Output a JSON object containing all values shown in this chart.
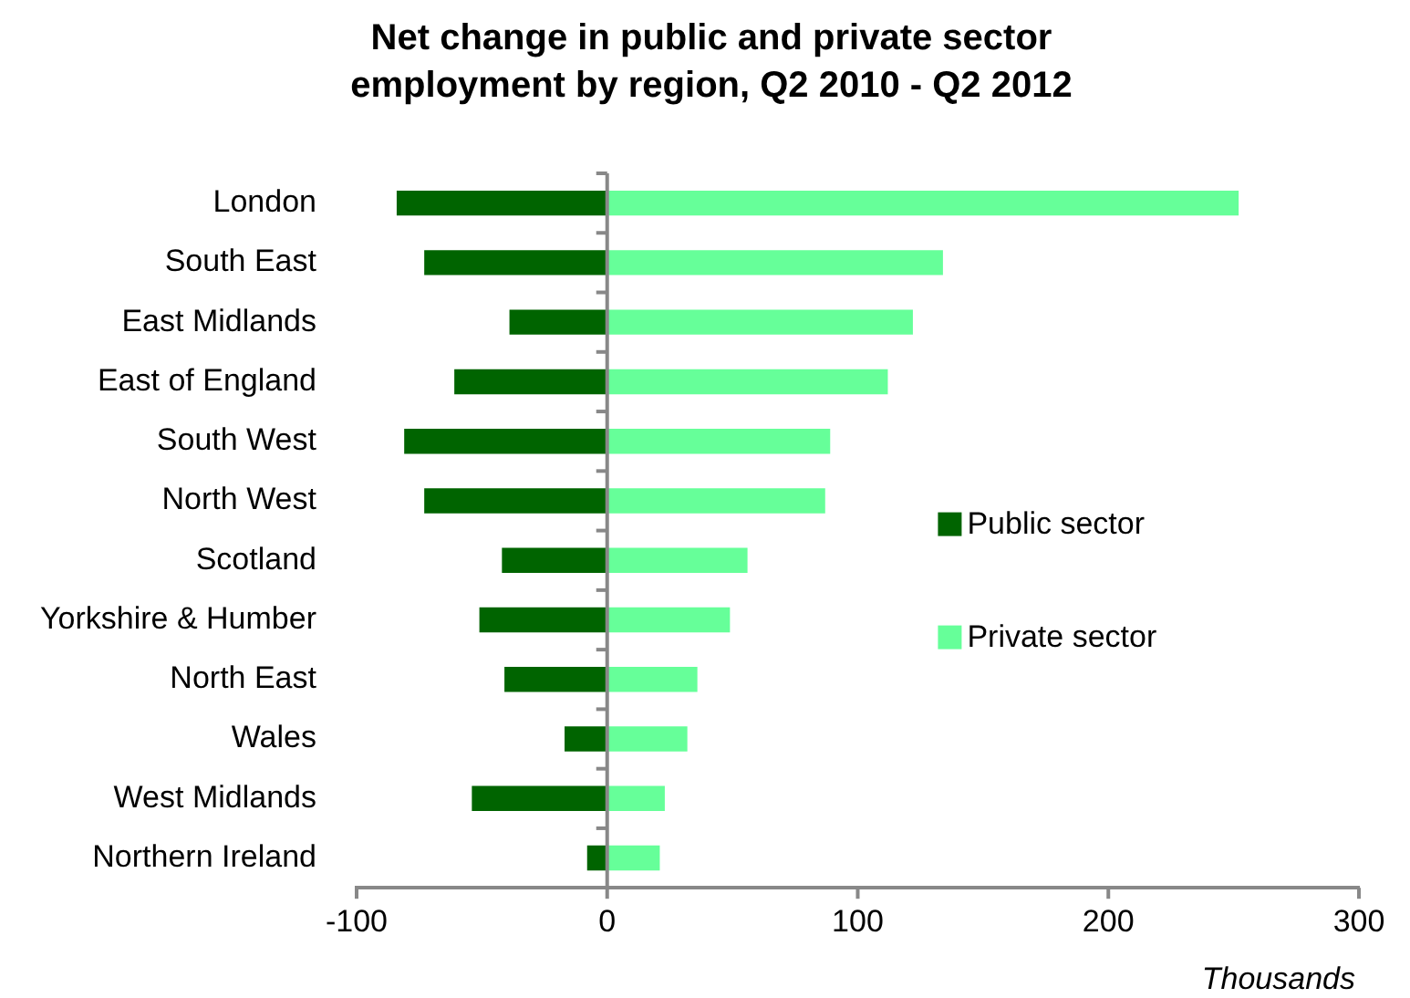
{
  "chart_data": {
    "type": "bar",
    "orientation": "horizontal",
    "stacked": true,
    "title": "Net change in public and private sector employment by region, Q2 2010 - Q2 2012",
    "categories": [
      "London",
      "South East",
      "East Midlands",
      "East of England",
      "South West",
      "North West",
      "Scotland",
      "Yorkshire & Humber",
      "North East",
      "Wales",
      "West Midlands",
      "Northern Ireland"
    ],
    "series": [
      {
        "name": "Public sector",
        "color": "#006400",
        "values": [
          -84,
          -73,
          -39,
          -61,
          -81,
          -73,
          -42,
          -51,
          -41,
          -17,
          -54,
          -8
        ]
      },
      {
        "name": "Private sector",
        "color": "#66ff99",
        "values": [
          252,
          134,
          122,
          112,
          89,
          87,
          56,
          49,
          36,
          32,
          23,
          21
        ]
      }
    ],
    "xlim": [
      -100,
      300
    ],
    "xticks": [
      -100,
      0,
      100,
      200,
      300
    ],
    "ref_lines": [
      {
        "axis": "x",
        "value": 0,
        "color": "#888888"
      }
    ],
    "grid": false,
    "legend": "right",
    "annotations": [
      "Thousands"
    ]
  }
}
